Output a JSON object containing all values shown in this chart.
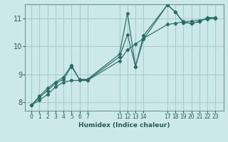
{
  "xlabel": "Humidex (Indice chaleur)",
  "ylabel": "",
  "bg_color": "#cce8e8",
  "line_color": "#2a6e65",
  "grid_color": "#a8cccc",
  "ylim": [
    7.7,
    11.5
  ],
  "xlim": [
    -0.8,
    24.0
  ],
  "series": [
    {
      "x": [
        0,
        1,
        2,
        3,
        4,
        5,
        6,
        7,
        11,
        12,
        13,
        14,
        17,
        18,
        19,
        20,
        21,
        22,
        23
      ],
      "y": [
        7.9,
        8.22,
        8.5,
        8.72,
        8.9,
        9.32,
        8.82,
        8.82,
        9.72,
        11.18,
        9.28,
        10.38,
        11.48,
        11.22,
        10.85,
        10.82,
        10.88,
        11.02,
        11.02
      ]
    },
    {
      "x": [
        0,
        1,
        2,
        3,
        4,
        5,
        6,
        7,
        11,
        12,
        13,
        14,
        17,
        18,
        19,
        20,
        21,
        22,
        23
      ],
      "y": [
        7.9,
        8.18,
        8.42,
        8.68,
        8.82,
        9.28,
        8.82,
        8.8,
        9.62,
        10.42,
        9.28,
        10.25,
        11.48,
        11.22,
        10.85,
        10.82,
        10.88,
        11.02,
        11.02
      ]
    },
    {
      "x": [
        0,
        1,
        2,
        3,
        4,
        5,
        6,
        7,
        11,
        12,
        13,
        14,
        17,
        18,
        19,
        20,
        21,
        22,
        23
      ],
      "y": [
        7.9,
        8.08,
        8.28,
        8.55,
        8.72,
        8.78,
        8.78,
        8.78,
        9.48,
        9.88,
        10.08,
        10.28,
        10.78,
        10.82,
        10.88,
        10.9,
        10.93,
        10.97,
        11.0
      ]
    }
  ],
  "xtick_labels": [
    "0",
    "1",
    "2",
    "3",
    "4",
    "5",
    "6",
    "7",
    "11",
    "12",
    "13",
    "14",
    "17",
    "18",
    "19",
    "20",
    "21",
    "22",
    "23"
  ],
  "xtick_positions": [
    0,
    1,
    2,
    3,
    4,
    5,
    6,
    7,
    11,
    12,
    13,
    14,
    17,
    18,
    19,
    20,
    21,
    22,
    23
  ],
  "ytick_positions": [
    8,
    9,
    10,
    11
  ],
  "ytick_labels": [
    "8",
    "9",
    "10",
    "11"
  ]
}
